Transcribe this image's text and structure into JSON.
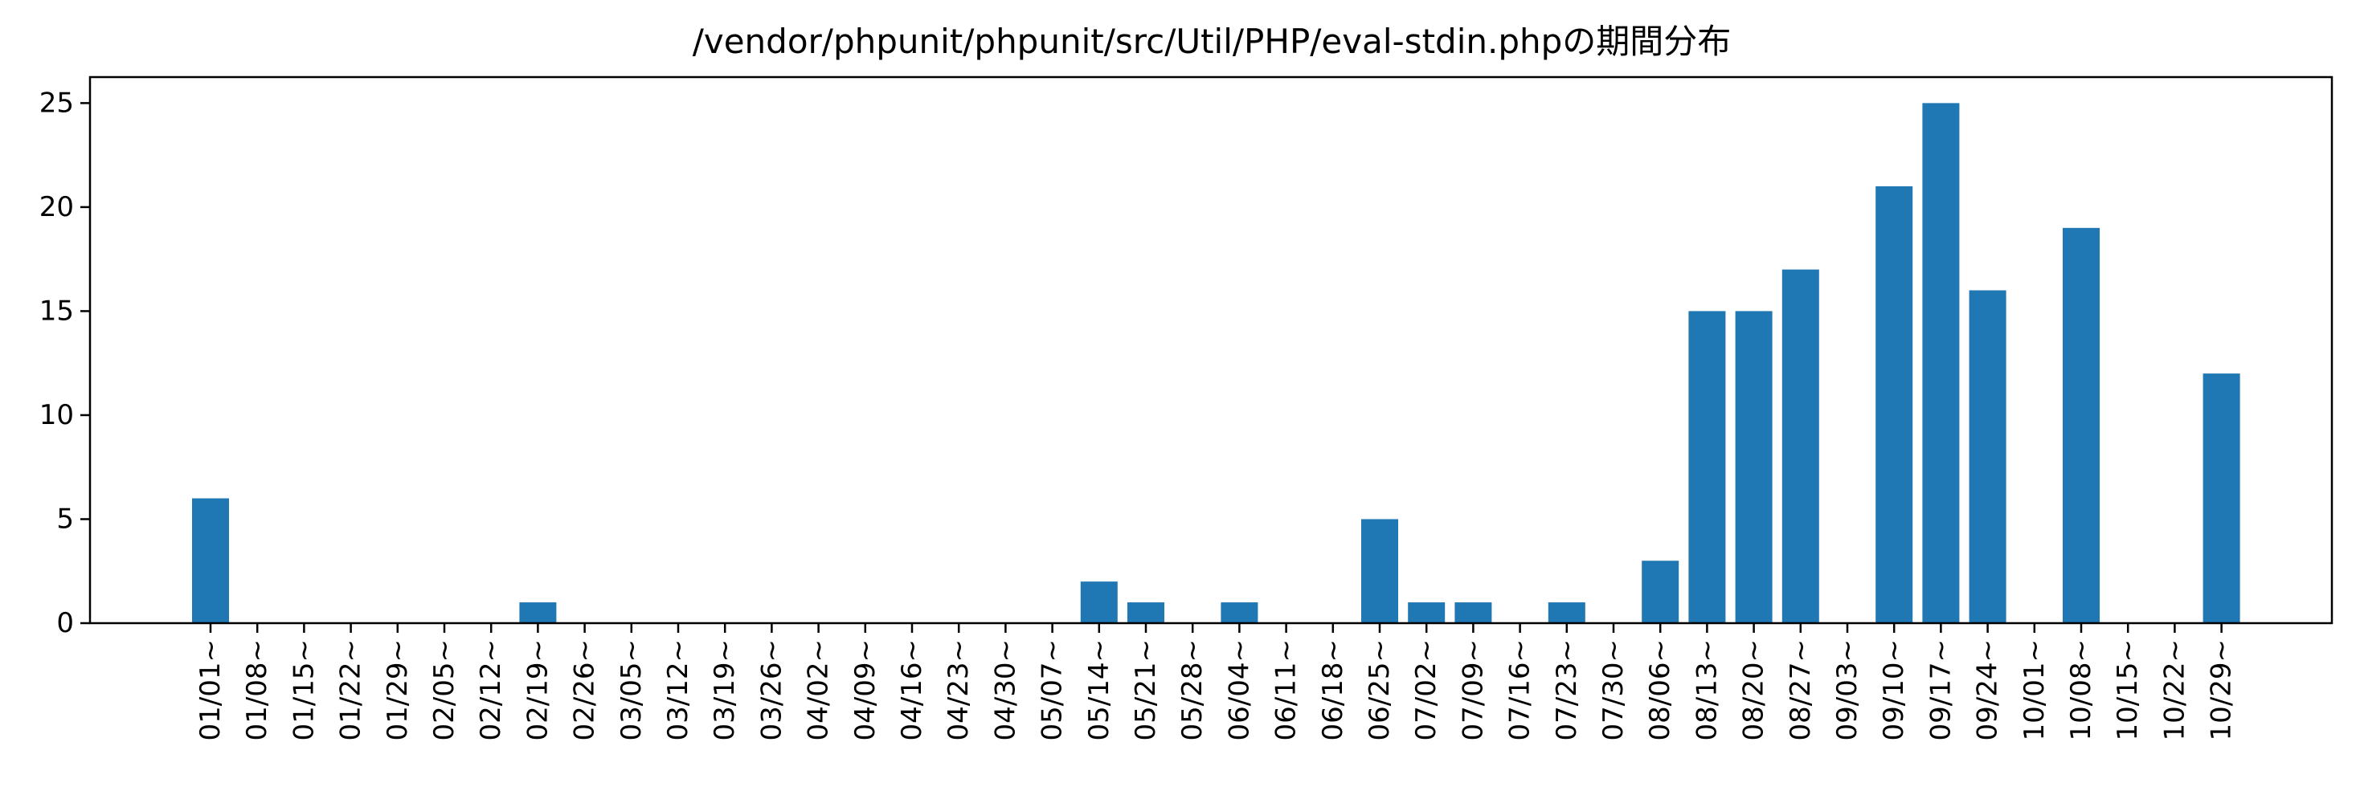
{
  "chart_data": {
    "type": "bar",
    "title": "/vendor/phpunit/phpunit/src/Util/PHP/eval-stdin.phpの期間分布",
    "xlabel": "",
    "ylabel": "",
    "categories": [
      "01/01~",
      "01/08~",
      "01/15~",
      "01/22~",
      "01/29~",
      "02/05~",
      "02/12~",
      "02/19~",
      "02/26~",
      "03/05~",
      "03/12~",
      "03/19~",
      "03/26~",
      "04/02~",
      "04/09~",
      "04/16~",
      "04/23~",
      "04/30~",
      "05/07~",
      "05/14~",
      "05/21~",
      "05/28~",
      "06/04~",
      "06/11~",
      "06/18~",
      "06/25~",
      "07/02~",
      "07/09~",
      "07/16~",
      "07/23~",
      "07/30~",
      "08/06~",
      "08/13~",
      "08/20~",
      "08/27~",
      "09/03~",
      "09/10~",
      "09/17~",
      "09/24~",
      "10/01~",
      "10/08~",
      "10/15~",
      "10/22~",
      "10/29~"
    ],
    "values": [
      6,
      0,
      0,
      0,
      0,
      0,
      0,
      1,
      0,
      0,
      0,
      0,
      0,
      0,
      0,
      0,
      0,
      0,
      0,
      2,
      1,
      0,
      1,
      0,
      0,
      5,
      1,
      1,
      0,
      1,
      0,
      3,
      15,
      15,
      17,
      0,
      21,
      25,
      16,
      0,
      19,
      0,
      0,
      12
    ],
    "ylim": [
      0,
      26.25
    ],
    "yticks": [
      0,
      5,
      10,
      15,
      20,
      25
    ],
    "bar_color": "#1f77b4",
    "grid": false,
    "legend": "none"
  }
}
